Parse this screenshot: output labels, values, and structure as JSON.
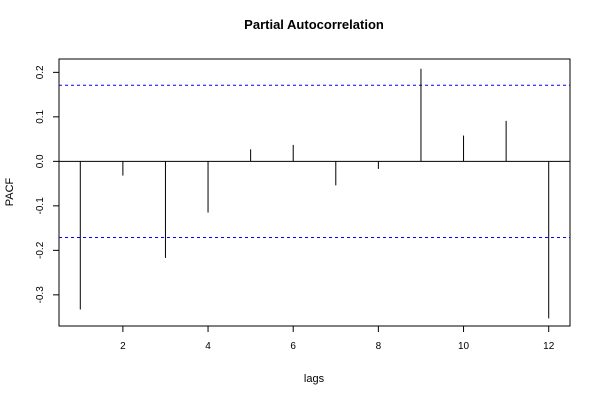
{
  "chart_data": {
    "type": "bar",
    "style": "vertical-lines (PACF spikes)",
    "title": "Partial Autocorrelation",
    "xlabel": "lags",
    "ylabel": "PACF",
    "x": [
      1,
      2,
      3,
      4,
      5,
      6,
      7,
      8,
      9,
      10,
      11,
      12
    ],
    "values": [
      -0.333,
      -0.032,
      -0.217,
      -0.115,
      0.027,
      0.037,
      -0.054,
      -0.017,
      0.208,
      0.058,
      0.091,
      -0.353
    ],
    "confidence_bounds": [
      0.171,
      -0.171
    ],
    "xlim": [
      0.5,
      12.5
    ],
    "ylim": [
      -0.37,
      0.23
    ],
    "x_ticks": [
      2,
      4,
      6,
      8,
      10,
      12
    ],
    "y_ticks": [
      -0.3,
      -0.2,
      -0.1,
      0.0,
      0.1,
      0.2
    ],
    "y_tick_labels": [
      "-0.3",
      "-0.2",
      "-0.1",
      "0.0",
      "0.1",
      "0.2"
    ],
    "zero_line": true,
    "grid": false,
    "colors": {
      "spike": "#000000",
      "bound": "#0000ff",
      "axis": "#000000"
    }
  }
}
